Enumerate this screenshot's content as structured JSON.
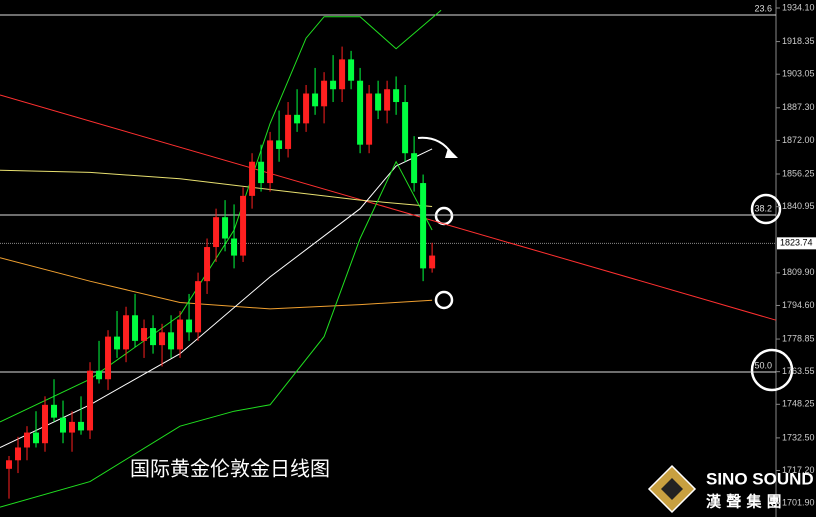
{
  "chart_data": {
    "type": "candlestick",
    "title": "国际黄金伦敦金日线图",
    "logo": {
      "name": "SINO SOUND",
      "subtitle": "漢 聲 集 團"
    },
    "up_color": "#ff2020",
    "down_color": "#00ff40",
    "xlim": [
      0,
      86.2
    ],
    "ylim": [
      1695.4,
      1937.85
    ],
    "yticks": [
      {
        "value": 1934.1,
        "label": "1934.10"
      },
      {
        "value": 1918.35,
        "label": "1918.35"
      },
      {
        "value": 1903.05,
        "label": "1903.05"
      },
      {
        "value": 1887.3,
        "label": "1887.30"
      },
      {
        "value": 1872,
        "label": "1872.00"
      },
      {
        "value": 1856.25,
        "label": "1856.25"
      },
      {
        "value": 1840.95,
        "label": "1840.95"
      },
      {
        "value": 1809.9,
        "label": "1809.90"
      },
      {
        "value": 1794.6,
        "label": "1794.60"
      },
      {
        "value": 1778.85,
        "label": "1778.85"
      },
      {
        "value": 1763.55,
        "label": "1763.55"
      },
      {
        "value": 1748.25,
        "label": "1748.25"
      },
      {
        "value": 1732.5,
        "label": "1732.50"
      },
      {
        "value": 1717.2,
        "label": "1717.20"
      },
      {
        "value": 1701.9,
        "label": "1701.90"
      }
    ],
    "current_price": {
      "value": 1823.74,
      "label": "1823.74"
    },
    "fib_levels": [
      {
        "label": "23.6",
        "price": 1930.8
      },
      {
        "label": "38.2",
        "price": 1837
      },
      {
        "label": "50.0",
        "price": 1763.4
      }
    ],
    "x": [
      1,
      2,
      3,
      4,
      5,
      6,
      7,
      8,
      9,
      10,
      11,
      12,
      13,
      14,
      15,
      16,
      17,
      18,
      19,
      20,
      21,
      22,
      23,
      24,
      25,
      26,
      27,
      28,
      29,
      30,
      31,
      32,
      33,
      34,
      35,
      36,
      37,
      38,
      39,
      40,
      41,
      42,
      43,
      44,
      45,
      46,
      47,
      48
    ],
    "open": [
      1718,
      1722,
      1728,
      1735,
      1730,
      1748,
      1742,
      1735,
      1740,
      1736,
      1764,
      1760,
      1780,
      1774,
      1790,
      1778,
      1784,
      1776,
      1782,
      1774,
      1788,
      1782,
      1806,
      1822,
      1836,
      1826,
      1818,
      1846,
      1862,
      1852,
      1872,
      1868,
      1884,
      1880,
      1894,
      1888,
      1900,
      1896,
      1910,
      1900,
      1870,
      1894,
      1886,
      1896,
      1890,
      1866,
      1852,
      1812
    ],
    "high": [
      1724,
      1733,
      1738,
      1745,
      1752,
      1760,
      1750,
      1745,
      1752,
      1768,
      1778,
      1783,
      1792,
      1794,
      1800,
      1788,
      1790,
      1786,
      1790,
      1792,
      1800,
      1810,
      1826,
      1840,
      1844,
      1842,
      1850,
      1866,
      1870,
      1876,
      1886,
      1890,
      1896,
      1898,
      1906,
      1904,
      1912,
      1916,
      1914,
      1906,
      1898,
      1900,
      1900,
      1902,
      1898,
      1874,
      1856,
      1824
    ],
    "low": [
      1704,
      1716,
      1722,
      1728,
      1726,
      1740,
      1730,
      1726,
      1734,
      1732,
      1758,
      1755,
      1770,
      1768,
      1775,
      1770,
      1772,
      1766,
      1770,
      1770,
      1778,
      1778,
      1800,
      1815,
      1820,
      1812,
      1815,
      1840,
      1848,
      1848,
      1862,
      1864,
      1876,
      1876,
      1884,
      1880,
      1890,
      1890,
      1896,
      1866,
      1866,
      1882,
      1880,
      1884,
      1862,
      1848,
      1806,
      1810
    ],
    "close": [
      1722,
      1728,
      1735,
      1730,
      1748,
      1742,
      1735,
      1740,
      1736,
      1764,
      1760,
      1780,
      1774,
      1790,
      1778,
      1784,
      1776,
      1782,
      1774,
      1788,
      1782,
      1806,
      1822,
      1836,
      1826,
      1818,
      1846,
      1862,
      1852,
      1872,
      1868,
      1884,
      1880,
      1894,
      1888,
      1900,
      1896,
      1910,
      1900,
      1870,
      1894,
      1886,
      1896,
      1890,
      1866,
      1852,
      1812,
      1818
    ],
    "overlays": [
      {
        "color": "#ff3030",
        "x": [
          0,
          86.2
        ],
        "values": [
          1893.3,
          1787.7
        ]
      },
      {
        "color": "#e8e070",
        "x": [
          0,
          10,
          20,
          30,
          40,
          48
        ],
        "values": [
          1858,
          1857,
          1854,
          1849,
          1844,
          1841
        ]
      },
      {
        "color": "#f0a030",
        "x": [
          0,
          10,
          20,
          30,
          40,
          48
        ],
        "values": [
          1817,
          1806,
          1796,
          1793,
          1795,
          1797
        ]
      },
      {
        "color": "#ffffff",
        "x": [
          0,
          10,
          20,
          30,
          40,
          44,
          48
        ],
        "values": [
          1728,
          1748,
          1772,
          1808,
          1840,
          1860,
          1868
        ]
      },
      {
        "color": "#20e020",
        "x": [
          0,
          10,
          20,
          26,
          30,
          34,
          36,
          40,
          44,
          49
        ],
        "values": [
          1740,
          1760,
          1790,
          1830,
          1880,
          1920,
          1930,
          1930,
          1915,
          1933
        ]
      },
      {
        "color": "#20e020",
        "x": [
          0,
          10,
          20,
          26,
          30,
          36,
          40,
          44,
          48
        ],
        "values": [
          1700,
          1712,
          1738,
          1745,
          1748,
          1780,
          1826,
          1862,
          1830
        ]
      }
    ]
  }
}
